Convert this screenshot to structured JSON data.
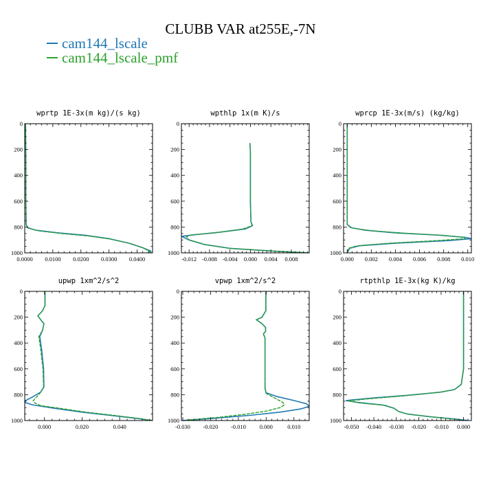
{
  "title": "CLUBB VAR at255E,-7N",
  "legend": [
    {
      "name": "cam144_lscale",
      "color": "#1f77b4"
    },
    {
      "name": "cam144_lscale_pmf",
      "color": "#2ca02c"
    }
  ],
  "chart_data": [
    {
      "type": "line",
      "title": "wprtp  1E-3x(m kg)/(s kg)",
      "xlim": [
        0,
        0.0455
      ],
      "ylim": [
        1000,
        0
      ],
      "xticks": [
        0,
        0.01,
        0.02,
        0.03,
        0.04
      ],
      "xticklabels": [
        "0.0000",
        "0.0100",
        "0.0200",
        "0.0300",
        "0.0400"
      ],
      "yticks": [
        0,
        200,
        400,
        600,
        800,
        1000
      ],
      "yticklabels": [
        "0",
        "200",
        "400",
        "600",
        "800",
        "1000"
      ],
      "series": [
        {
          "name": "cam144_lscale",
          "points": [
            [
              0.0003,
              0
            ],
            [
              0.0004,
              300
            ],
            [
              0.0004,
              600
            ],
            [
              0.0005,
              780
            ],
            [
              0.001,
              805
            ],
            [
              0.004,
              825
            ],
            [
              0.012,
              845
            ],
            [
              0.022,
              865
            ],
            [
              0.03,
              890
            ],
            [
              0.037,
              925
            ],
            [
              0.042,
              960
            ],
            [
              0.0448,
              985
            ],
            [
              0.045,
              1000
            ]
          ]
        },
        {
          "name": "cam144_lscale_pmf",
          "points": [
            [
              0.0003,
              0
            ],
            [
              0.0004,
              300
            ],
            [
              0.0004,
              600
            ],
            [
              0.0005,
              780
            ],
            [
              0.0012,
              808
            ],
            [
              0.005,
              830
            ],
            [
              0.013,
              850
            ],
            [
              0.023,
              870
            ],
            [
              0.031,
              895
            ],
            [
              0.038,
              930
            ],
            [
              0.0425,
              965
            ],
            [
              0.0445,
              990
            ],
            [
              0.0442,
              1000
            ]
          ]
        }
      ]
    },
    {
      "type": "line",
      "title": "wpthlp  1x(m K)/s",
      "xlim": [
        -0.0135,
        0.0115
      ],
      "ylim": [
        1000,
        0
      ],
      "xticks": [
        -0.012,
        -0.008,
        -0.004,
        0,
        0.004,
        0.008
      ],
      "xticklabels": [
        "-0.012",
        "-0.008",
        "-0.004",
        "0.000",
        "0.004",
        "0.008"
      ],
      "yticks": [
        0,
        200,
        400,
        600,
        800,
        1000
      ],
      "yticklabels": [
        "0",
        "200",
        "400",
        "600",
        "800",
        "1000"
      ],
      "series": [
        {
          "name": "cam144_lscale",
          "points": [
            [
              -0.0001,
              150
            ],
            [
              0.0,
              220
            ],
            [
              0.0,
              400
            ],
            [
              0.0,
              600
            ],
            [
              0.0001,
              760
            ],
            [
              0.0004,
              790
            ],
            [
              -0.001,
              815
            ],
            [
              -0.006,
              840
            ],
            [
              -0.011,
              860
            ],
            [
              -0.0135,
              872
            ],
            [
              -0.012,
              900
            ],
            [
              -0.009,
              935
            ],
            [
              -0.004,
              965
            ],
            [
              0.004,
              985
            ],
            [
              0.0115,
              1000
            ]
          ]
        },
        {
          "name": "cam144_lscale_pmf",
          "points": [
            [
              -0.0001,
              150
            ],
            [
              0.0,
              220
            ],
            [
              0.0,
              400
            ],
            [
              0.0,
              600
            ],
            [
              0.0001,
              760
            ],
            [
              0.0003,
              790
            ],
            [
              -0.0015,
              815
            ],
            [
              -0.007,
              845
            ],
            [
              -0.0115,
              860
            ],
            [
              -0.0125,
              875
            ],
            [
              -0.012,
              900
            ],
            [
              -0.009,
              935
            ],
            [
              -0.004,
              965
            ],
            [
              0.004,
              985
            ],
            [
              0.0115,
              1000
            ]
          ]
        }
      ]
    },
    {
      "type": "line",
      "title": "wprcp  1E-3x(m/s) (kg/kg)",
      "xlim": [
        -0.0003,
        0.0103
      ],
      "ylim": [
        1000,
        0
      ],
      "xticks": [
        0,
        0.002,
        0.004,
        0.006,
        0.008,
        0.01
      ],
      "xticklabels": [
        "0.000",
        "0.002",
        "0.004",
        "0.006",
        "0.008",
        "0.010"
      ],
      "yticks": [
        0,
        200,
        400,
        600,
        800,
        1000
      ],
      "yticklabels": [
        "0",
        "200",
        "400",
        "600",
        "800",
        "1000"
      ],
      "series": [
        {
          "name": "cam144_lscale",
          "points": [
            [
              0.0,
              0
            ],
            [
              0.0,
              780
            ],
            [
              0.0003,
              805
            ],
            [
              0.0015,
              825
            ],
            [
              0.004,
              845
            ],
            [
              0.0075,
              862
            ],
            [
              0.0098,
              880
            ],
            [
              0.0103,
              890
            ],
            [
              0.0085,
              905
            ],
            [
              0.004,
              925
            ],
            [
              0.001,
              945
            ],
            [
              0.0002,
              965
            ],
            [
              0.0,
              1000
            ]
          ]
        },
        {
          "name": "cam144_lscale_pmf",
          "points": [
            [
              0.0,
              0
            ],
            [
              0.0,
              780
            ],
            [
              0.0004,
              808
            ],
            [
              0.002,
              828
            ],
            [
              0.0048,
              848
            ],
            [
              0.008,
              865
            ],
            [
              0.0097,
              880
            ],
            [
              0.0098,
              890
            ],
            [
              0.0075,
              905
            ],
            [
              0.0035,
              925
            ],
            [
              0.0008,
              945
            ],
            [
              0.0001,
              965
            ],
            [
              0.0,
              1000
            ]
          ]
        }
      ]
    },
    {
      "type": "line",
      "title": "upwp  1xm^2/s^2",
      "xlim": [
        -0.0105,
        0.0575
      ],
      "ylim": [
        1000,
        0
      ],
      "xticks": [
        0,
        0.02,
        0.04
      ],
      "xticklabels": [
        "0.000",
        "0.020",
        "0.040"
      ],
      "yticks": [
        0,
        200,
        400,
        600,
        800,
        1000
      ],
      "yticklabels": [
        "0",
        "200",
        "400",
        "600",
        "800",
        "1000"
      ],
      "series": [
        {
          "name": "cam144_lscale",
          "points": [
            [
              0.0003,
              0
            ],
            [
              0.0003,
              110
            ],
            [
              -0.001,
              150
            ],
            [
              -0.0035,
              190
            ],
            [
              -0.002,
              220
            ],
            [
              -0.0003,
              250
            ],
            [
              -0.001,
              300
            ],
            [
              -0.0025,
              350
            ],
            [
              -0.0015,
              450
            ],
            [
              -0.0005,
              600
            ],
            [
              -0.0003,
              740
            ],
            [
              -0.002,
              780
            ],
            [
              -0.006,
              815
            ],
            [
              -0.01,
              845
            ],
            [
              -0.0105,
              860
            ],
            [
              -0.006,
              880
            ],
            [
              0.005,
              905
            ],
            [
              0.02,
              935
            ],
            [
              0.035,
              960
            ],
            [
              0.05,
              985
            ],
            [
              0.0575,
              1000
            ]
          ]
        },
        {
          "name": "cam144_lscale_pmf",
          "points": [
            [
              0.0003,
              0
            ],
            [
              0.0003,
              110
            ],
            [
              -0.001,
              150
            ],
            [
              -0.0035,
              190
            ],
            [
              -0.002,
              220
            ],
            [
              -0.0003,
              250
            ],
            [
              -0.001,
              300
            ],
            [
              -0.003,
              350
            ],
            [
              -0.002,
              450
            ],
            [
              -0.0008,
              600
            ],
            [
              -0.0005,
              740
            ],
            [
              -0.002,
              780
            ],
            [
              -0.004,
              815
            ],
            [
              -0.006,
              845
            ],
            [
              -0.005,
              865
            ],
            [
              -0.002,
              885
            ],
            [
              0.008,
              905
            ],
            [
              0.022,
              935
            ],
            [
              0.037,
              960
            ],
            [
              0.051,
              985
            ],
            [
              0.057,
              1000
            ]
          ]
        }
      ]
    },
    {
      "type": "line",
      "title": "vpwp  1xm^2/s^2",
      "xlim": [
        -0.0305,
        0.0155
      ],
      "ylim": [
        1000,
        0
      ],
      "xticks": [
        -0.03,
        -0.02,
        -0.01,
        0,
        0.01
      ],
      "xticklabels": [
        "-0.030",
        "-0.020",
        "-0.010",
        "0.000",
        "0.010"
      ],
      "yticks": [
        0,
        200,
        400,
        600,
        800,
        1000
      ],
      "yticklabels": [
        "0",
        "200",
        "400",
        "600",
        "800",
        "1000"
      ],
      "series": [
        {
          "name": "cam144_lscale",
          "points": [
            [
              -0.0001,
              0
            ],
            [
              -0.0001,
              150
            ],
            [
              -0.0015,
              200
            ],
            [
              -0.0035,
              220
            ],
            [
              -0.0015,
              250
            ],
            [
              -0.0002,
              280
            ],
            [
              -0.0002,
              310
            ],
            [
              -0.001,
              330
            ],
            [
              -0.0004,
              360
            ],
            [
              -0.0004,
              500
            ],
            [
              -0.0004,
              750
            ],
            [
              0.0,
              785
            ],
            [
              0.004,
              815
            ],
            [
              0.01,
              845
            ],
            [
              0.0145,
              870
            ],
            [
              0.0155,
              890
            ],
            [
              0.0125,
              910
            ],
            [
              0.005,
              935
            ],
            [
              -0.006,
              960
            ],
            [
              -0.02,
              985
            ],
            [
              -0.0305,
              1000
            ]
          ]
        },
        {
          "name": "cam144_lscale_pmf",
          "points": [
            [
              -0.0001,
              0
            ],
            [
              -0.0001,
              150
            ],
            [
              -0.0015,
              200
            ],
            [
              -0.0035,
              220
            ],
            [
              -0.0015,
              250
            ],
            [
              -0.0002,
              280
            ],
            [
              -0.0002,
              310
            ],
            [
              -0.001,
              330
            ],
            [
              -0.0004,
              360
            ],
            [
              -0.0004,
              500
            ],
            [
              -0.0004,
              750
            ],
            [
              0.0,
              790
            ],
            [
              0.003,
              825
            ],
            [
              0.006,
              860
            ],
            [
              0.0065,
              880
            ],
            [
              0.005,
              900
            ],
            [
              0.0005,
              925
            ],
            [
              -0.007,
              950
            ],
            [
              -0.017,
              975
            ],
            [
              -0.028,
              995
            ],
            [
              -0.029,
              1000
            ]
          ]
        }
      ]
    },
    {
      "type": "line",
      "title": "rtpthlp  1E-3x(kg K)/kg",
      "xlim": [
        -0.0535,
        0.0035
      ],
      "ylim": [
        1000,
        0
      ],
      "xticks": [
        -0.05,
        -0.04,
        -0.03,
        -0.02,
        -0.01,
        0
      ],
      "xticklabels": [
        "-0.050",
        "-0.040",
        "-0.030",
        "-0.020",
        "-0.010",
        "0.000"
      ],
      "yticks": [
        0,
        200,
        400,
        600,
        800,
        1000
      ],
      "yticklabels": [
        "0",
        "200",
        "400",
        "600",
        "800",
        "1000"
      ],
      "series": [
        {
          "name": "cam144_lscale",
          "points": [
            [
              0.0,
              0
            ],
            [
              0.0,
              300
            ],
            [
              0.0,
              600
            ],
            [
              -0.001,
              720
            ],
            [
              -0.004,
              760
            ],
            [
              -0.01,
              780
            ],
            [
              -0.025,
              805
            ],
            [
              -0.04,
              825
            ],
            [
              -0.0525,
              845
            ],
            [
              -0.047,
              860
            ],
            [
              -0.036,
              880
            ],
            [
              -0.031,
              905
            ],
            [
              -0.029,
              930
            ],
            [
              -0.025,
              950
            ],
            [
              -0.015,
              970
            ],
            [
              -0.003,
              990
            ],
            [
              0.002,
              1000
            ]
          ]
        },
        {
          "name": "cam144_lscale_pmf",
          "points": [
            [
              0.0,
              0
            ],
            [
              0.0,
              300
            ],
            [
              0.0,
              600
            ],
            [
              -0.001,
              720
            ],
            [
              -0.004,
              760
            ],
            [
              -0.011,
              782
            ],
            [
              -0.026,
              808
            ],
            [
              -0.041,
              830
            ],
            [
              -0.0515,
              848
            ],
            [
              -0.046,
              865
            ],
            [
              -0.035,
              882
            ],
            [
              -0.031,
              905
            ],
            [
              -0.029,
              930
            ],
            [
              -0.025,
              950
            ],
            [
              -0.015,
              970
            ],
            [
              -0.004,
              990
            ],
            [
              0.0,
              1000
            ]
          ]
        }
      ]
    }
  ]
}
